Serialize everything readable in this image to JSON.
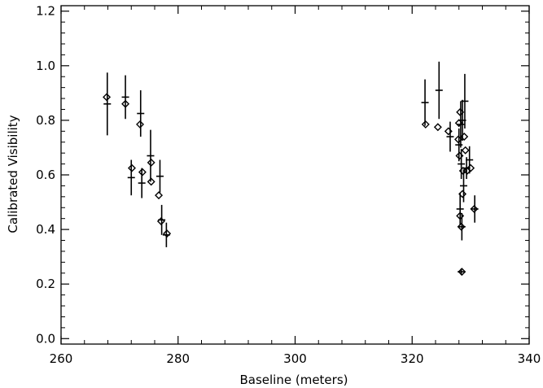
{
  "chart_data": {
    "type": "scatter",
    "title": "",
    "xlabel": "Baseline (meters)",
    "ylabel": "Calibrated Visibility",
    "xlim": [
      260,
      340
    ],
    "ylim": [
      -0.02,
      1.22
    ],
    "x_ticks": [
      260,
      280,
      300,
      320,
      340
    ],
    "y_ticks": [
      0.0,
      0.2,
      0.4,
      0.6,
      0.8,
      1.0,
      1.2
    ],
    "x_tick_labels": [
      "260",
      "280",
      "300",
      "320",
      "340"
    ],
    "y_tick_labels": [
      "0.0",
      "0.2",
      "0.4",
      "0.6",
      "0.8",
      "1.0",
      "1.2"
    ],
    "grid": false,
    "series": [
      {
        "marker": "plus-with-errorbar",
        "points": [
          {
            "x": 267.9,
            "y": 0.86,
            "yerr": 0.115
          },
          {
            "x": 271.0,
            "y": 0.885,
            "yerr": 0.08
          },
          {
            "x": 273.6,
            "y": 0.825,
            "yerr": 0.085
          },
          {
            "x": 272.0,
            "y": 0.59,
            "yerr": 0.065
          },
          {
            "x": 273.8,
            "y": 0.57,
            "yerr": 0.055
          },
          {
            "x": 275.3,
            "y": 0.67,
            "yerr": 0.095
          },
          {
            "x": 276.9,
            "y": 0.595,
            "yerr": 0.06
          },
          {
            "x": 277.2,
            "y": 0.435,
            "yerr": 0.055
          },
          {
            "x": 278.0,
            "y": 0.38,
            "yerr": 0.045
          },
          {
            "x": 322.2,
            "y": 0.865,
            "yerr": 0.085
          },
          {
            "x": 324.6,
            "y": 0.91,
            "yerr": 0.105
          },
          {
            "x": 326.5,
            "y": 0.74,
            "yerr": 0.055
          },
          {
            "x": 328.0,
            "y": 0.71,
            "yerr": 0.06
          },
          {
            "x": 328.3,
            "y": 0.785,
            "yerr": 0.085
          },
          {
            "x": 328.6,
            "y": 0.8,
            "yerr": 0.075
          },
          {
            "x": 329.0,
            "y": 0.87,
            "yerr": 0.1
          },
          {
            "x": 328.4,
            "y": 0.64,
            "yerr": 0.055
          },
          {
            "x": 328.8,
            "y": 0.56,
            "yerr": 0.06
          },
          {
            "x": 329.3,
            "y": 0.625,
            "yerr": 0.04
          },
          {
            "x": 329.8,
            "y": 0.655,
            "yerr": 0.05
          },
          {
            "x": 328.2,
            "y": 0.475,
            "yerr": 0.06
          },
          {
            "x": 328.5,
            "y": 0.41,
            "yerr": 0.05
          },
          {
            "x": 330.7,
            "y": 0.475,
            "yerr": 0.05
          },
          {
            "x": 328.4,
            "y": 0.245,
            "yerr": 0.012
          }
        ]
      },
      {
        "marker": "diamond",
        "points": [
          {
            "x": 267.8,
            "y": 0.885
          },
          {
            "x": 271.0,
            "y": 0.86
          },
          {
            "x": 273.5,
            "y": 0.785
          },
          {
            "x": 272.1,
            "y": 0.625
          },
          {
            "x": 273.9,
            "y": 0.61
          },
          {
            "x": 275.4,
            "y": 0.645
          },
          {
            "x": 275.4,
            "y": 0.575
          },
          {
            "x": 276.7,
            "y": 0.525
          },
          {
            "x": 277.1,
            "y": 0.43
          },
          {
            "x": 278.1,
            "y": 0.385
          },
          {
            "x": 322.3,
            "y": 0.785
          },
          {
            "x": 324.4,
            "y": 0.775
          },
          {
            "x": 326.2,
            "y": 0.76
          },
          {
            "x": 328.2,
            "y": 0.83
          },
          {
            "x": 328.0,
            "y": 0.79
          },
          {
            "x": 327.9,
            "y": 0.73
          },
          {
            "x": 328.1,
            "y": 0.67
          },
          {
            "x": 328.9,
            "y": 0.74
          },
          {
            "x": 329.1,
            "y": 0.69
          },
          {
            "x": 328.7,
            "y": 0.615
          },
          {
            "x": 329.4,
            "y": 0.615
          },
          {
            "x": 330.0,
            "y": 0.625
          },
          {
            "x": 328.6,
            "y": 0.53
          },
          {
            "x": 328.2,
            "y": 0.45
          },
          {
            "x": 328.4,
            "y": 0.41
          },
          {
            "x": 330.6,
            "y": 0.475
          },
          {
            "x": 328.5,
            "y": 0.245
          }
        ]
      }
    ]
  }
}
